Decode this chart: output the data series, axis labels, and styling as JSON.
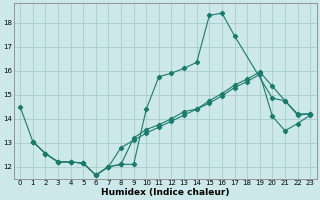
{
  "xlabel": "Humidex (Indice chaleur)",
  "bg_color": "#cce8e8",
  "grid_color": "#aacccc",
  "line_color": "#1a7a6e",
  "xlim": [
    -0.5,
    23.5
  ],
  "ylim": [
    11.5,
    18.8
  ],
  "xticks": [
    0,
    1,
    2,
    3,
    4,
    5,
    6,
    7,
    8,
    9,
    10,
    11,
    12,
    13,
    14,
    15,
    16,
    17,
    18,
    19,
    20,
    21,
    22,
    23
  ],
  "yticks": [
    12,
    13,
    14,
    15,
    16,
    17,
    18
  ],
  "line1_x": [
    0,
    1,
    2,
    3,
    4,
    5,
    6,
    7,
    8,
    9,
    10,
    11,
    12,
    13,
    14,
    15,
    16,
    17,
    20,
    21,
    22,
    23
  ],
  "line1_y": [
    14.5,
    13.05,
    12.55,
    12.2,
    12.2,
    12.15,
    11.65,
    12.0,
    12.1,
    12.1,
    14.4,
    15.75,
    15.9,
    16.1,
    16.35,
    18.3,
    18.4,
    17.45,
    14.85,
    14.75,
    14.2,
    14.2
  ],
  "line2_x": [
    1,
    2,
    3,
    4,
    5,
    6,
    7,
    8,
    9,
    10,
    11,
    12,
    13,
    14,
    15,
    16,
    17,
    18,
    19,
    20,
    21,
    22,
    23
  ],
  "line2_y": [
    13.05,
    12.55,
    12.2,
    12.2,
    12.15,
    11.65,
    12.0,
    12.1,
    13.2,
    13.55,
    13.75,
    14.0,
    14.3,
    14.4,
    14.75,
    15.05,
    15.4,
    15.65,
    15.95,
    15.35,
    14.75,
    14.15,
    14.2
  ],
  "line3_x": [
    1,
    2,
    3,
    4,
    5,
    6,
    7,
    8,
    9,
    10,
    11,
    12,
    13,
    14,
    15,
    16,
    17,
    18,
    19,
    20,
    21,
    22,
    23
  ],
  "line3_y": [
    13.05,
    12.55,
    12.2,
    12.2,
    12.15,
    11.65,
    12.0,
    12.8,
    13.1,
    13.4,
    13.65,
    13.9,
    14.15,
    14.4,
    14.65,
    14.95,
    15.3,
    15.55,
    15.85,
    14.1,
    13.5,
    13.8,
    14.15
  ]
}
